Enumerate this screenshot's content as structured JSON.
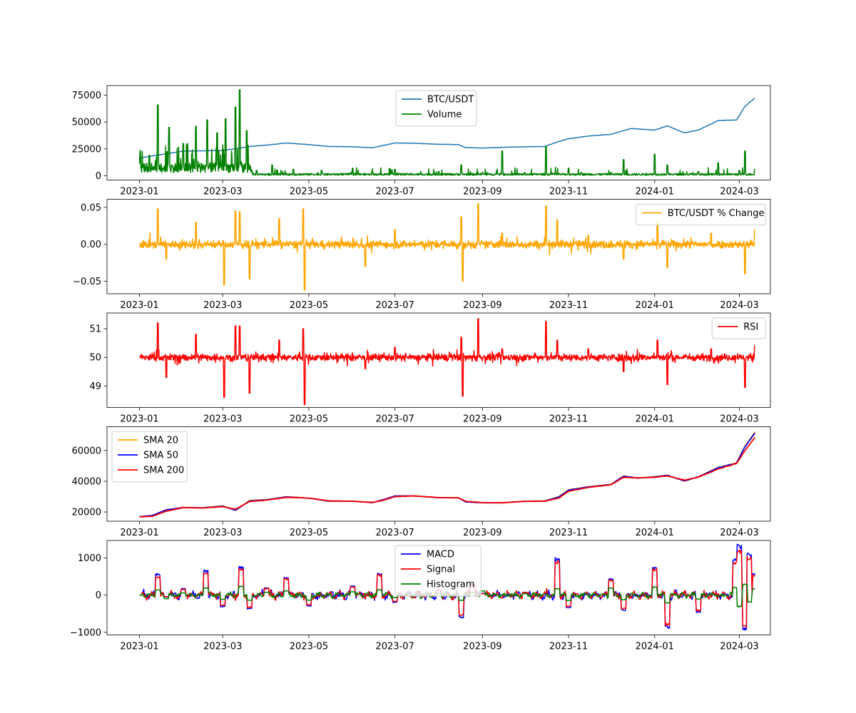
{
  "chart_data": [
    {
      "type": "line",
      "x_type": "date",
      "xlim": [
        "2022-12-09",
        "2024-03-23"
      ],
      "xticks": [
        "2023-01",
        "2023-03",
        "2023-05",
        "2023-07",
        "2023-09",
        "2023-11",
        "2024-01",
        "2024-03"
      ],
      "ylim": [
        -4000,
        84000
      ],
      "yticks": [
        0,
        25000,
        50000,
        75000
      ],
      "ytick_labels": [
        "0",
        "25000",
        "50000",
        "75000"
      ],
      "legend": {
        "placement": "top-center"
      },
      "series": [
        {
          "name": "BTC/USDT",
          "color": "#1f77b4",
          "x": [
            "2023-01-01",
            "2023-02-01",
            "2023-03-01",
            "2023-03-22",
            "2023-04-01",
            "2023-04-15",
            "2023-05-01",
            "2023-05-15",
            "2023-06-01",
            "2023-06-15",
            "2023-07-01",
            "2023-07-15",
            "2023-08-01",
            "2023-08-15",
            "2023-08-20",
            "2023-09-01",
            "2023-09-15",
            "2023-10-01",
            "2023-10-15",
            "2023-10-23",
            "2023-11-01",
            "2023-11-15",
            "2023-12-01",
            "2023-12-15",
            "2024-01-01",
            "2024-01-10",
            "2024-01-22",
            "2024-02-01",
            "2024-02-15",
            "2024-02-28",
            "2024-03-05",
            "2024-03-12"
          ],
          "values": [
            16500,
            23000,
            23500,
            27500,
            28500,
            30500,
            29000,
            27300,
            27000,
            26000,
            30500,
            30300,
            29300,
            29000,
            26200,
            25800,
            26500,
            27000,
            27200,
            31000,
            34500,
            37000,
            38500,
            44000,
            42500,
            46500,
            40000,
            42500,
            51500,
            52000,
            64500,
            72500
          ]
        },
        {
          "name": "Volume",
          "color": "#008000",
          "x": [
            "2023-01-01",
            "2023-01-08",
            "2023-01-14",
            "2023-01-22",
            "2023-02-01",
            "2023-02-10",
            "2023-02-18",
            "2023-02-25",
            "2023-03-03",
            "2023-03-10",
            "2023-03-13",
            "2023-03-18",
            "2023-03-25",
            "2023-04-05",
            "2023-04-20",
            "2023-05-10",
            "2023-06-01",
            "2023-06-15",
            "2023-07-01",
            "2023-08-01",
            "2023-08-17",
            "2023-09-01",
            "2023-09-15",
            "2023-10-01",
            "2023-10-16",
            "2023-11-01",
            "2023-11-10",
            "2023-12-01",
            "2023-12-10",
            "2024-01-01",
            "2024-01-10",
            "2024-02-01",
            "2024-02-15",
            "2024-03-01",
            "2024-03-05",
            "2024-03-12"
          ],
          "values": [
            4000,
            19000,
            66000,
            45000,
            30000,
            46000,
            52000,
            40000,
            53000,
            64000,
            80000,
            42000,
            5000,
            10000,
            6000,
            5000,
            7000,
            4000,
            6000,
            4000,
            10000,
            3000,
            23000,
            3000,
            27000,
            7000,
            3000,
            3000,
            15000,
            20000,
            10000,
            4000,
            12000,
            5000,
            23000,
            6000
          ]
        }
      ]
    },
    {
      "type": "line",
      "x_type": "date",
      "xlim": [
        "2022-12-09",
        "2024-03-23"
      ],
      "xticks": [
        "2023-01",
        "2023-03",
        "2023-05",
        "2023-07",
        "2023-09",
        "2023-11",
        "2024-01",
        "2024-03"
      ],
      "ylim": [
        -0.067,
        0.061
      ],
      "yticks": [
        -0.05,
        0,
        0.05
      ],
      "ytick_labels": [
        "−0.05",
        "0.00",
        "0.05"
      ],
      "legend": {
        "placement": "top-right"
      },
      "series": [
        {
          "name": "BTC/USDT % Change",
          "color": "#ffa500",
          "x": [
            "2023-01-01",
            "2023-01-14",
            "2023-01-20",
            "2023-02-10",
            "2023-03-02",
            "2023-03-10",
            "2023-03-13",
            "2023-03-20",
            "2023-04-10",
            "2023-04-27",
            "2023-04-28",
            "2023-06-10",
            "2023-07-01",
            "2023-08-17",
            "2023-08-18",
            "2023-08-29",
            "2023-09-15",
            "2023-10-16",
            "2023-10-24",
            "2023-11-15",
            "2023-12-10",
            "2024-01-03",
            "2024-01-10",
            "2024-02-10",
            "2024-03-05",
            "2024-03-12"
          ],
          "values": [
            0.001,
            0.048,
            -0.02,
            0.03,
            -0.055,
            0.045,
            0.044,
            -0.047,
            0.035,
            0.048,
            -0.062,
            -0.03,
            0.02,
            0.037,
            -0.05,
            0.055,
            0.015,
            0.052,
            0.033,
            0.012,
            -0.02,
            0.03,
            -0.032,
            0.015,
            -0.04,
            0.02
          ]
        }
      ]
    },
    {
      "type": "line",
      "x_type": "date",
      "xlim": [
        "2022-12-09",
        "2024-03-23"
      ],
      "xticks": [
        "2023-01",
        "2023-03",
        "2023-05",
        "2023-07",
        "2023-09",
        "2023-11",
        "2024-01",
        "2024-03"
      ],
      "ylim": [
        48.25,
        51.55
      ],
      "yticks": [
        49,
        50,
        51
      ],
      "ytick_labels": [
        "49",
        "50",
        "51"
      ],
      "legend": {
        "placement": "top-right"
      },
      "series": [
        {
          "name": "RSI",
          "color": "#ff0000",
          "x": [
            "2023-01-01",
            "2023-01-14",
            "2023-01-20",
            "2023-02-10",
            "2023-03-02",
            "2023-03-10",
            "2023-03-13",
            "2023-03-20",
            "2023-04-10",
            "2023-04-27",
            "2023-04-28",
            "2023-06-10",
            "2023-07-01",
            "2023-08-17",
            "2023-08-18",
            "2023-08-29",
            "2023-09-15",
            "2023-10-16",
            "2023-10-24",
            "2023-11-15",
            "2023-12-10",
            "2024-01-03",
            "2024-01-10",
            "2024-02-10",
            "2024-03-05",
            "2024-03-12"
          ],
          "values": [
            50.02,
            51.2,
            49.3,
            50.8,
            48.6,
            51.1,
            51.1,
            48.75,
            50.6,
            51.0,
            48.35,
            49.6,
            50.35,
            50.7,
            48.65,
            51.35,
            50.3,
            51.25,
            50.6,
            50.3,
            49.5,
            50.6,
            49.05,
            50.3,
            48.95,
            50.4
          ]
        }
      ]
    },
    {
      "type": "line",
      "x_type": "date",
      "xlim": [
        "2022-12-09",
        "2024-03-23"
      ],
      "xticks": [
        "2023-01",
        "2023-03",
        "2023-05",
        "2023-07",
        "2023-09",
        "2023-11",
        "2024-01",
        "2024-03"
      ],
      "ylim": [
        14000,
        75500
      ],
      "yticks": [
        20000,
        40000,
        60000
      ],
      "ytick_labels": [
        "20000",
        "40000",
        "60000"
      ],
      "legend": {
        "placement": "top-left"
      },
      "series": [
        {
          "name": "SMA 20",
          "color": "#ffa500",
          "x": [
            "2023-01-01",
            "2023-01-10",
            "2023-01-20",
            "2023-02-01",
            "2023-02-15",
            "2023-03-01",
            "2023-03-10",
            "2023-03-20",
            "2023-04-01",
            "2023-04-15",
            "2023-05-01",
            "2023-05-15",
            "2023-06-01",
            "2023-06-15",
            "2023-06-22",
            "2023-07-01",
            "2023-07-15",
            "2023-08-01",
            "2023-08-15",
            "2023-08-20",
            "2023-09-01",
            "2023-09-15",
            "2023-10-01",
            "2023-10-15",
            "2023-10-25",
            "2023-11-01",
            "2023-11-15",
            "2023-12-01",
            "2023-12-10",
            "2023-12-20",
            "2024-01-01",
            "2024-01-10",
            "2024-01-22",
            "2024-02-01",
            "2024-02-15",
            "2024-02-28",
            "2024-03-05",
            "2024-03-12"
          ],
          "values": [
            17000,
            17800,
            21500,
            23000,
            22800,
            24000,
            21000,
            27500,
            28000,
            30000,
            29000,
            27000,
            27000,
            26000,
            28000,
            30500,
            30500,
            29300,
            29300,
            26500,
            26000,
            26000,
            27000,
            27200,
            30000,
            34500,
            36500,
            38000,
            43500,
            42000,
            43000,
            44000,
            40000,
            43000,
            49000,
            52000,
            63000,
            72000
          ]
        },
        {
          "name": "SMA 50",
          "color": "#0000ff",
          "x": [
            "2023-01-01",
            "2023-01-10",
            "2023-01-20",
            "2023-02-01",
            "2023-02-15",
            "2023-03-01",
            "2023-03-10",
            "2023-03-20",
            "2023-04-01",
            "2023-04-15",
            "2023-05-01",
            "2023-05-15",
            "2023-06-01",
            "2023-06-15",
            "2023-06-22",
            "2023-07-01",
            "2023-07-15",
            "2023-08-01",
            "2023-08-15",
            "2023-08-20",
            "2023-09-01",
            "2023-09-15",
            "2023-10-01",
            "2023-10-15",
            "2023-10-25",
            "2023-11-01",
            "2023-11-15",
            "2023-12-01",
            "2023-12-10",
            "2023-12-20",
            "2024-01-01",
            "2024-01-10",
            "2024-01-22",
            "2024-02-01",
            "2024-02-15",
            "2024-02-28",
            "2024-03-05",
            "2024-03-12"
          ],
          "values": [
            16900,
            17700,
            21300,
            22900,
            22700,
            23800,
            21200,
            27200,
            27900,
            29800,
            29000,
            27100,
            27000,
            26100,
            27800,
            30400,
            30400,
            29300,
            29200,
            26600,
            26000,
            26000,
            27000,
            27100,
            29700,
            34200,
            36300,
            37900,
            43200,
            42100,
            42800,
            43800,
            40300,
            42800,
            48800,
            51800,
            62500,
            71500
          ]
        },
        {
          "name": "SMA 200",
          "color": "#ff0000",
          "x": [
            "2023-01-01",
            "2023-01-10",
            "2023-01-20",
            "2023-02-01",
            "2023-02-15",
            "2023-03-01",
            "2023-03-10",
            "2023-03-20",
            "2023-04-01",
            "2023-04-15",
            "2023-05-01",
            "2023-05-15",
            "2023-06-01",
            "2023-06-15",
            "2023-06-22",
            "2023-07-01",
            "2023-07-15",
            "2023-08-01",
            "2023-08-15",
            "2023-08-20",
            "2023-09-01",
            "2023-09-15",
            "2023-10-01",
            "2023-10-15",
            "2023-10-25",
            "2023-11-01",
            "2023-11-15",
            "2023-12-01",
            "2023-12-10",
            "2023-12-20",
            "2024-01-01",
            "2024-01-10",
            "2024-01-22",
            "2024-02-01",
            "2024-02-15",
            "2024-02-28",
            "2024-03-05",
            "2024-03-12"
          ],
          "values": [
            16800,
            17200,
            20500,
            22800,
            22600,
            23500,
            21800,
            26800,
            27700,
            29500,
            29100,
            27300,
            27000,
            26300,
            27400,
            30000,
            30400,
            29400,
            29200,
            27000,
            26100,
            26000,
            26900,
            27000,
            29000,
            33500,
            36000,
            37700,
            42500,
            42200,
            42600,
            43500,
            40800,
            42600,
            48000,
            51500,
            60000,
            68500
          ]
        }
      ]
    },
    {
      "type": "line",
      "x_type": "date",
      "xlim": [
        "2022-12-09",
        "2024-03-23"
      ],
      "xticks": [
        "2023-01",
        "2023-03",
        "2023-05",
        "2023-07",
        "2023-09",
        "2023-11",
        "2024-01",
        "2024-03"
      ],
      "ylim": [
        -1070,
        1470
      ],
      "yticks": [
        -1000,
        0,
        1000
      ],
      "ytick_labels": [
        "−1000",
        "0",
        "1000"
      ],
      "legend": {
        "placement": "top-center"
      },
      "series": [
        {
          "name": "MACD",
          "color": "#0000ff",
          "x": [
            "2023-01-01",
            "2023-01-14",
            "2023-01-20",
            "2023-02-01",
            "2023-02-17",
            "2023-03-01",
            "2023-03-14",
            "2023-03-20",
            "2023-04-01",
            "2023-04-15",
            "2023-05-01",
            "2023-06-01",
            "2023-06-20",
            "2023-07-01",
            "2023-08-01",
            "2023-08-17",
            "2023-08-25",
            "2023-09-01",
            "2023-10-01",
            "2023-10-24",
            "2023-11-01",
            "2023-12-01",
            "2023-12-10",
            "2024-01-01",
            "2024-01-10",
            "2024-02-01",
            "2024-02-27",
            "2024-03-01",
            "2024-03-05",
            "2024-03-08",
            "2024-03-12"
          ],
          "values": [
            0,
            580,
            -50,
            180,
            680,
            -320,
            780,
            -380,
            200,
            480,
            -300,
            250,
            600,
            -200,
            150,
            -620,
            300,
            50,
            80,
            1020,
            -350,
            450,
            -420,
            780,
            -900,
            -480,
            1000,
            1380,
            -950,
            1150,
            600
          ]
        },
        {
          "name": "Signal",
          "color": "#ff0000",
          "x": [
            "2023-01-01",
            "2023-01-14",
            "2023-01-20",
            "2023-02-01",
            "2023-02-17",
            "2023-03-01",
            "2023-03-14",
            "2023-03-20",
            "2023-04-01",
            "2023-04-15",
            "2023-05-01",
            "2023-06-01",
            "2023-06-20",
            "2023-07-01",
            "2023-08-01",
            "2023-08-17",
            "2023-08-25",
            "2023-09-01",
            "2023-10-01",
            "2023-10-24",
            "2023-11-01",
            "2023-12-01",
            "2023-12-10",
            "2024-01-01",
            "2024-01-10",
            "2024-02-01",
            "2024-02-27",
            "2024-03-01",
            "2024-03-05",
            "2024-03-08",
            "2024-03-12"
          ],
          "values": [
            0,
            500,
            -40,
            160,
            620,
            -280,
            720,
            -340,
            180,
            450,
            -270,
            230,
            560,
            -180,
            140,
            -560,
            270,
            40,
            70,
            930,
            -320,
            420,
            -380,
            720,
            -820,
            -440,
            900,
            1250,
            -860,
            1050,
            550
          ]
        },
        {
          "name": "Histogram",
          "color": "#008000",
          "x": [
            "2023-01-01",
            "2023-01-14",
            "2023-01-20",
            "2023-02-01",
            "2023-02-17",
            "2023-03-01",
            "2023-03-14",
            "2023-03-20",
            "2023-04-01",
            "2023-04-15",
            "2023-05-01",
            "2023-06-01",
            "2023-06-20",
            "2023-07-01",
            "2023-08-01",
            "2023-08-17",
            "2023-08-25",
            "2023-09-01",
            "2023-10-01",
            "2023-10-24",
            "2023-11-01",
            "2023-12-01",
            "2023-12-10",
            "2024-01-01",
            "2024-01-10",
            "2024-02-01",
            "2024-02-27",
            "2024-03-01",
            "2024-03-05",
            "2024-03-08",
            "2024-03-12"
          ],
          "values": [
            0,
            150,
            -100,
            60,
            200,
            -120,
            250,
            -150,
            80,
            120,
            -140,
            90,
            150,
            -70,
            60,
            -150,
            80,
            120,
            40,
            180,
            -150,
            200,
            -130,
            230,
            -220,
            -110,
            210,
            -320,
            300,
            -200,
            180
          ]
        }
      ]
    }
  ]
}
